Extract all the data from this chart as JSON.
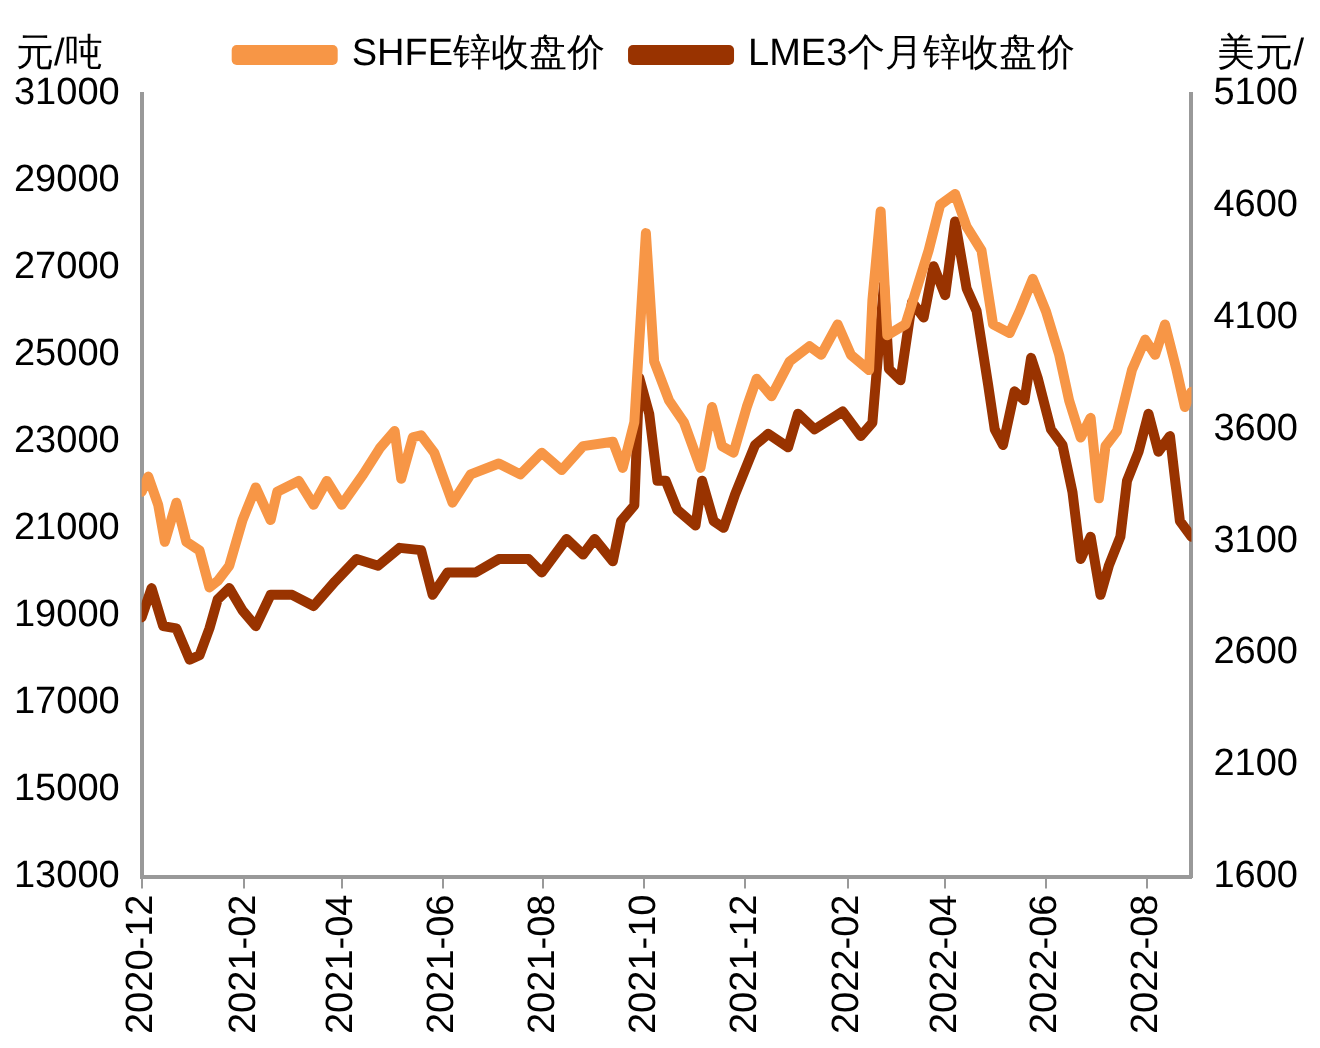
{
  "chart_data": {
    "type": "line",
    "ylabel": "元/吨",
    "y2label": "美元/",
    "xlim": [
      "2020-12-01",
      "2022-08-28"
    ],
    "xticks": [
      "2020-12",
      "2021-02",
      "2021-04",
      "2021-06",
      "2021-08",
      "2021-10",
      "2021-12",
      "2022-02",
      "2022-04",
      "2022-06",
      "2022-08"
    ],
    "ylim": [
      13000,
      31000
    ],
    "yticks": [
      13000,
      15000,
      17000,
      19000,
      21000,
      23000,
      25000,
      27000,
      29000,
      31000
    ],
    "y2lim": [
      1600,
      5100
    ],
    "y2ticks": [
      1600,
      2100,
      2600,
      3100,
      3600,
      4100,
      4600,
      5100
    ],
    "legend": "top",
    "grid": false,
    "marker": "none",
    "line_style": "solid",
    "series": [
      {
        "name": "SHFE锌收盘价",
        "color": "#f79646",
        "x": [
          "2020-12-01",
          "2020-12-05",
          "2020-12-11",
          "2020-12-15",
          "2020-12-22",
          "2020-12-28",
          "2021-01-05",
          "2021-01-11",
          "2021-01-16",
          "2021-01-23",
          "2021-01-31",
          "2021-02-08",
          "2021-02-17",
          "2021-02-21",
          "2021-03-06",
          "2021-03-15",
          "2021-03-23",
          "2021-04-01",
          "2021-04-14",
          "2021-04-24",
          "2021-05-03",
          "2021-05-07",
          "2021-05-14",
          "2021-05-19",
          "2021-05-27",
          "2021-06-07",
          "2021-06-18",
          "2021-07-05",
          "2021-07-18",
          "2021-07-31",
          "2021-08-12",
          "2021-08-25",
          "2021-09-12",
          "2021-09-18",
          "2021-09-25",
          "2021-10-02",
          "2021-10-07",
          "2021-10-16",
          "2021-10-25",
          "2021-11-04",
          "2021-11-11",
          "2021-11-17",
          "2021-11-24",
          "2021-12-02",
          "2021-12-08",
          "2021-12-17",
          "2021-12-28",
          "2022-01-09",
          "2022-01-16",
          "2022-01-26",
          "2022-02-03",
          "2022-02-14",
          "2022-02-16",
          "2022-02-21",
          "2022-02-25",
          "2022-03-08",
          "2022-03-15",
          "2022-03-22",
          "2022-03-29",
          "2022-04-07",
          "2022-04-14",
          "2022-04-23",
          "2022-04-30",
          "2022-05-10",
          "2022-05-16",
          "2022-05-24",
          "2022-06-01",
          "2022-06-09",
          "2022-06-15",
          "2022-06-22",
          "2022-06-28",
          "2022-07-03",
          "2022-07-07",
          "2022-07-14",
          "2022-07-23",
          "2022-07-31",
          "2022-08-06",
          "2022-08-12",
          "2022-08-19",
          "2022-08-24",
          "2022-08-28"
        ],
        "values": [
          21850,
          22200,
          21550,
          20700,
          21600,
          20700,
          20500,
          19650,
          19800,
          20150,
          21200,
          21950,
          21200,
          21850,
          22100,
          21550,
          22100,
          21550,
          22250,
          22850,
          23250,
          22150,
          23100,
          23150,
          22750,
          21600,
          22250,
          22500,
          22250,
          22750,
          22350,
          22900,
          23000,
          22400,
          23450,
          27800,
          24850,
          23950,
          23450,
          22400,
          23800,
          22900,
          22750,
          23800,
          24450,
          24050,
          24850,
          25200,
          25000,
          25700,
          25000,
          24650,
          26250,
          28300,
          25450,
          25700,
          26550,
          27400,
          28450,
          28700,
          27950,
          27400,
          25700,
          25500,
          26000,
          26750,
          26000,
          25000,
          23950,
          23100,
          23550,
          21700,
          22900,
          23250,
          24650,
          25350,
          25000,
          25700,
          24650,
          23800,
          24150
        ]
      },
      {
        "name": "LME3个月锌收盘价",
        "color": "#993300",
        "axis": "y2",
        "x": [
          "2020-12-01",
          "2020-12-07",
          "2020-12-14",
          "2020-12-22",
          "2020-12-30",
          "2021-01-05",
          "2021-01-11",
          "2021-01-16",
          "2021-01-23",
          "2021-01-31",
          "2021-02-08",
          "2021-02-17",
          "2021-03-02",
          "2021-03-15",
          "2021-03-28",
          "2021-04-10",
          "2021-04-23",
          "2021-05-06",
          "2021-05-19",
          "2021-05-26",
          "2021-06-04",
          "2021-06-21",
          "2021-07-05",
          "2021-07-23",
          "2021-07-31",
          "2021-08-15",
          "2021-08-25",
          "2021-09-01",
          "2021-09-12",
          "2021-09-17",
          "2021-09-25",
          "2021-09-28",
          "2021-10-04",
          "2021-10-09",
          "2021-10-14",
          "2021-10-21",
          "2021-11-01",
          "2021-11-05",
          "2021-11-12",
          "2021-11-18",
          "2021-11-25",
          "2021-12-07",
          "2021-12-15",
          "2021-12-27",
          "2022-01-02",
          "2022-01-12",
          "2022-01-29",
          "2022-02-09",
          "2022-02-16",
          "2022-02-23",
          "2022-02-26",
          "2022-03-05",
          "2022-03-12",
          "2022-03-19",
          "2022-03-25",
          "2022-04-01",
          "2022-04-07",
          "2022-04-14",
          "2022-04-20",
          "2022-04-27",
          "2022-05-01",
          "2022-05-06",
          "2022-05-13",
          "2022-05-19",
          "2022-05-23",
          "2022-05-27",
          "2022-06-04",
          "2022-06-11",
          "2022-06-17",
          "2022-06-22",
          "2022-06-28",
          "2022-07-04",
          "2022-07-09",
          "2022-07-16",
          "2022-07-20",
          "2022-07-27",
          "2022-08-02",
          "2022-08-08",
          "2022-08-15",
          "2022-08-21",
          "2022-08-28"
        ],
        "values": [
          2760,
          2890,
          2720,
          2710,
          2570,
          2590,
          2710,
          2840,
          2890,
          2790,
          2720,
          2860,
          2860,
          2810,
          2920,
          3020,
          2990,
          3070,
          3060,
          2860,
          2960,
          2960,
          3020,
          3020,
          2960,
          3110,
          3040,
          3110,
          3010,
          3190,
          3260,
          3830,
          3670,
          3370,
          3370,
          3240,
          3170,
          3370,
          3190,
          3160,
          3310,
          3530,
          3580,
          3520,
          3670,
          3600,
          3680,
          3570,
          3630,
          4250,
          3870,
          3820,
          4170,
          4100,
          4330,
          4200,
          4530,
          4230,
          4130,
          3800,
          3600,
          3530,
          3770,
          3730,
          3920,
          3830,
          3600,
          3530,
          3320,
          3020,
          3120,
          2860,
          2990,
          3120,
          3370,
          3500,
          3670,
          3500,
          3570,
          3190,
          3120
        ]
      }
    ]
  }
}
